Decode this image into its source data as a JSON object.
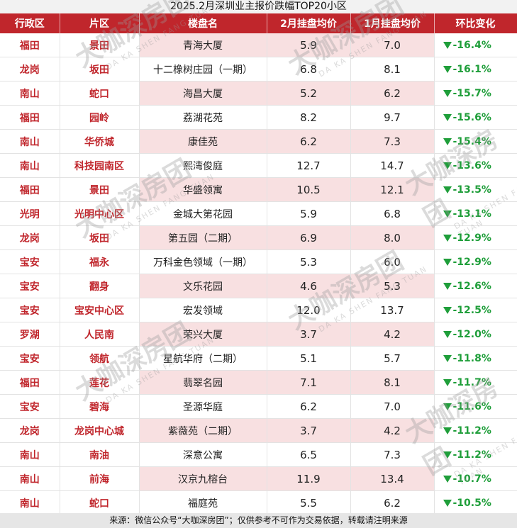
{
  "title": "2025.2月深圳业主报价跌幅TOP20小区",
  "footer": "来源：微信公众号“大咖深房团”；仅供参考不可作为交易依据，转载请注明来源",
  "watermark": {
    "main": "大咖深房团",
    "sub": "DA KA SHEN FANG TUAN"
  },
  "colors": {
    "header_bg": "#c0262c",
    "district_text": "#c0262c",
    "change_green": "#1f9e3a",
    "row_highlight": "#f8e0e1"
  },
  "chart_data": {
    "type": "table",
    "title": "2025.2月深圳业主报价跌幅TOP20小区",
    "columns": [
      "行政区",
      "片区",
      "楼盘名",
      "2月挂盘均价",
      "1月挂盘均价",
      "环比变化"
    ],
    "rows": [
      {
        "district": "福田",
        "area": "景田",
        "name": "青海大厦",
        "feb": "5.9",
        "jan": "7.0",
        "change": "-16.4%",
        "highlight": true
      },
      {
        "district": "龙岗",
        "area": "坂田",
        "name": "十二橡树庄园（一期）",
        "feb": "6.8",
        "jan": "8.1",
        "change": "-16.1%",
        "highlight": false
      },
      {
        "district": "南山",
        "area": "蛇口",
        "name": "海昌大厦",
        "feb": "5.2",
        "jan": "6.2",
        "change": "-15.7%",
        "highlight": true
      },
      {
        "district": "福田",
        "area": "园岭",
        "name": "荔湖花苑",
        "feb": "8.2",
        "jan": "9.7",
        "change": "-15.6%",
        "highlight": false
      },
      {
        "district": "南山",
        "area": "华侨城",
        "name": "康佳苑",
        "feb": "6.2",
        "jan": "7.3",
        "change": "-15.4%",
        "highlight": true
      },
      {
        "district": "南山",
        "area": "科技园南区",
        "name": "熙湾俊庭",
        "feb": "12.7",
        "jan": "14.7",
        "change": "-13.6%",
        "highlight": false
      },
      {
        "district": "福田",
        "area": "景田",
        "name": "华盛领寓",
        "feb": "10.5",
        "jan": "12.1",
        "change": "-13.5%",
        "highlight": true
      },
      {
        "district": "光明",
        "area": "光明中心区",
        "name": "金城大第花园",
        "feb": "5.9",
        "jan": "6.8",
        "change": "-13.1%",
        "highlight": false
      },
      {
        "district": "龙岗",
        "area": "坂田",
        "name": "第五园（二期）",
        "feb": "6.9",
        "jan": "8.0",
        "change": "-12.9%",
        "highlight": true
      },
      {
        "district": "宝安",
        "area": "福永",
        "name": "万科金色领域（一期）",
        "feb": "5.3",
        "jan": "6.0",
        "change": "-12.9%",
        "highlight": false
      },
      {
        "district": "宝安",
        "area": "翻身",
        "name": "文乐花园",
        "feb": "4.6",
        "jan": "5.3",
        "change": "-12.6%",
        "highlight": true
      },
      {
        "district": "宝安",
        "area": "宝安中心区",
        "name": "宏发领域",
        "feb": "12.0",
        "jan": "13.7",
        "change": "-12.5%",
        "highlight": false
      },
      {
        "district": "罗湖",
        "area": "人民南",
        "name": "荣兴大厦",
        "feb": "3.7",
        "jan": "4.2",
        "change": "-12.0%",
        "highlight": true
      },
      {
        "district": "宝安",
        "area": "领航",
        "name": "星航华府（二期）",
        "feb": "5.1",
        "jan": "5.7",
        "change": "-11.8%",
        "highlight": false
      },
      {
        "district": "福田",
        "area": "莲花",
        "name": "翡翠名园",
        "feb": "7.1",
        "jan": "8.1",
        "change": "-11.7%",
        "highlight": true
      },
      {
        "district": "宝安",
        "area": "碧海",
        "name": "圣源华庭",
        "feb": "6.2",
        "jan": "7.0",
        "change": "-11.6%",
        "highlight": false
      },
      {
        "district": "龙岗",
        "area": "龙岗中心城",
        "name": "紫薇苑（二期）",
        "feb": "3.7",
        "jan": "4.2",
        "change": "-11.2%",
        "highlight": true
      },
      {
        "district": "南山",
        "area": "南油",
        "name": "深意公寓",
        "feb": "6.5",
        "jan": "7.3",
        "change": "-11.2%",
        "highlight": false
      },
      {
        "district": "南山",
        "area": "前海",
        "name": "汉京九榕台",
        "feb": "11.9",
        "jan": "13.4",
        "change": "-10.7%",
        "highlight": true
      },
      {
        "district": "南山",
        "area": "蛇口",
        "name": "福庭苑",
        "feb": "5.5",
        "jan": "6.2",
        "change": "-10.5%",
        "highlight": false
      }
    ]
  }
}
